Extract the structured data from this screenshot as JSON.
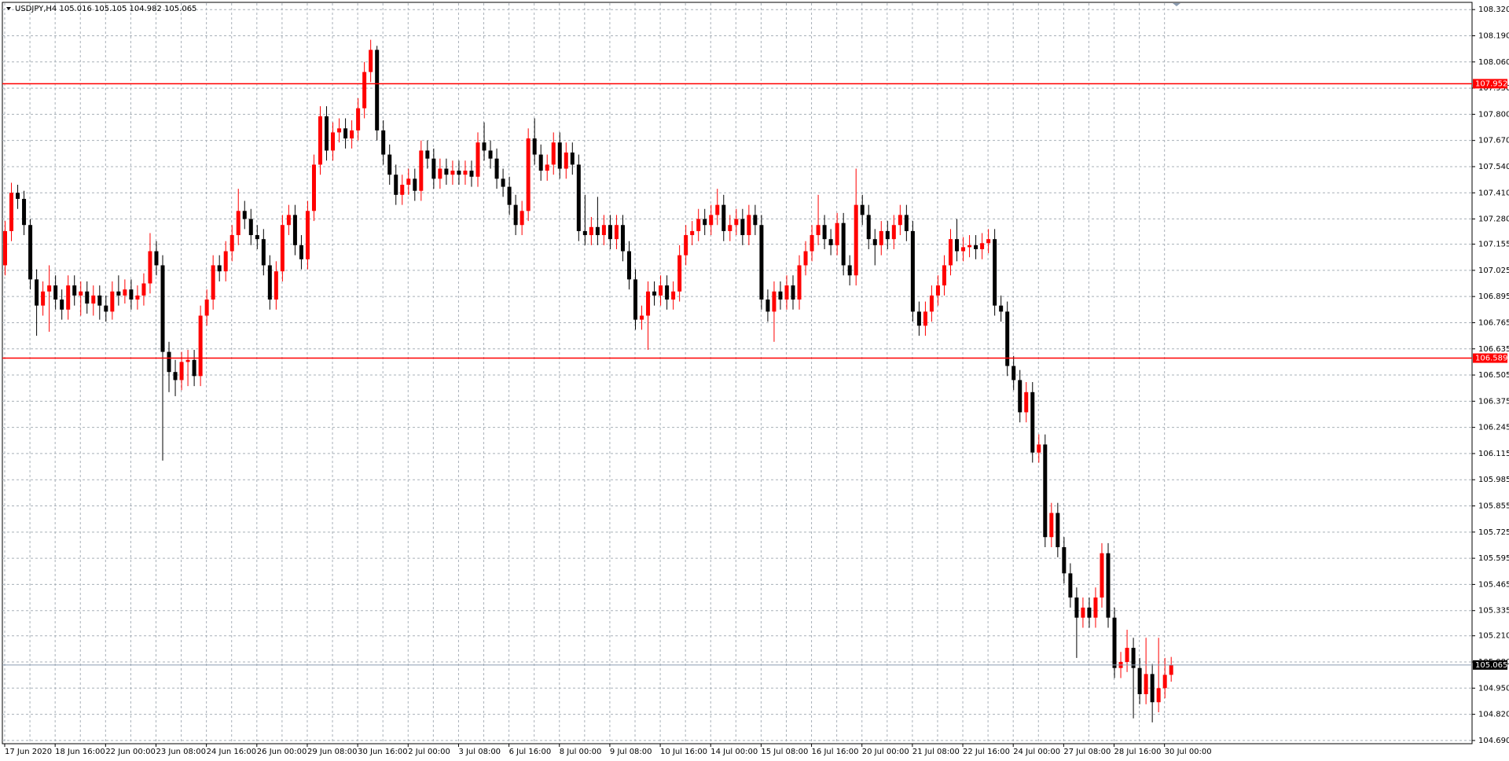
{
  "chart_data": {
    "type": "candlestick",
    "title": "USDJPY,H4  105.016 105.105 104.982 105.065",
    "up_color": "#ff0000",
    "down_color": "#000000",
    "grid": true,
    "categories": [
      "17 Jun 2020",
      null,
      null,
      null,
      null,
      null,
      null,
      null,
      "18 Jun 16:00",
      null,
      null,
      null,
      null,
      null,
      null,
      null,
      "22 Jun 00:00",
      null,
      null,
      null,
      null,
      null,
      null,
      null,
      "23 Jun 08:00",
      null,
      null,
      null,
      null,
      null,
      null,
      null,
      "24 Jun 16:00",
      null,
      null,
      null,
      null,
      null,
      null,
      null,
      "26 Jun 00:00",
      null,
      null,
      null,
      null,
      null,
      null,
      null,
      "29 Jun 08:00",
      null,
      null,
      null,
      null,
      null,
      null,
      null,
      "30 Jun 16:00",
      null,
      null,
      null,
      null,
      null,
      null,
      null,
      "2 Jul 00:00",
      null,
      null,
      null,
      null,
      null,
      null,
      null,
      "3 Jul 08:00",
      null,
      null,
      null,
      null,
      null,
      null,
      null,
      "6 Jul 16:00",
      null,
      null,
      null,
      null,
      null,
      null,
      null,
      "8 Jul 00:00",
      null,
      null,
      null,
      null,
      null,
      null,
      null,
      "9 Jul 08:00",
      null,
      null,
      null,
      null,
      null,
      null,
      null,
      "10 Jul 16:00",
      null,
      null,
      null,
      null,
      null,
      null,
      null,
      "14 Jul 00:00",
      null,
      null,
      null,
      null,
      null,
      null,
      null,
      "15 Jul 08:00",
      null,
      null,
      null,
      null,
      null,
      null,
      null,
      "16 Jul 16:00",
      null,
      null,
      null,
      null,
      null,
      null,
      null,
      "20 Jul 00:00",
      null,
      null,
      null,
      null,
      null,
      null,
      null,
      "21 Jul 08:00",
      null,
      null,
      null,
      null,
      null,
      null,
      null,
      "22 Jul 16:00",
      null,
      null,
      null,
      null,
      null,
      null,
      null,
      "24 Jul 00:00",
      null,
      null,
      null,
      null,
      null,
      null,
      null,
      "27 Jul 08:00",
      null,
      null,
      null,
      null,
      null,
      null,
      null,
      "28 Jul 16:00",
      null,
      null,
      null,
      null,
      null,
      null,
      null,
      "30 Jul 00:00",
      null
    ],
    "candles": [
      [
        107.05,
        107.27,
        107.0,
        107.22
      ],
      [
        107.22,
        107.46,
        107.17,
        107.41
      ],
      [
        107.41,
        107.45,
        107.33,
        107.38
      ],
      [
        107.38,
        107.42,
        107.2,
        107.25
      ],
      [
        107.25,
        107.28,
        106.93,
        106.98
      ],
      [
        106.98,
        107.03,
        106.7,
        106.85
      ],
      [
        106.85,
        106.97,
        106.8,
        106.92
      ],
      [
        106.92,
        107.05,
        106.72,
        106.95
      ],
      [
        106.95,
        107.0,
        106.83,
        106.88
      ],
      [
        106.88,
        106.93,
        106.78,
        106.83
      ],
      [
        106.83,
        107.0,
        106.78,
        106.95
      ],
      [
        106.95,
        107.0,
        106.85,
        106.9
      ],
      [
        106.9,
        106.97,
        106.8,
        106.92
      ],
      [
        106.92,
        106.97,
        106.81,
        106.86
      ],
      [
        106.86,
        106.95,
        106.8,
        106.9
      ],
      [
        106.9,
        106.95,
        106.78,
        106.85
      ],
      [
        106.85,
        106.9,
        106.77,
        106.82
      ],
      [
        106.82,
        106.97,
        106.78,
        106.92
      ],
      [
        106.92,
        107.0,
        106.85,
        106.9
      ],
      [
        106.9,
        106.98,
        106.86,
        106.93
      ],
      [
        106.93,
        106.98,
        106.83,
        106.88
      ],
      [
        106.88,
        106.95,
        106.83,
        106.9
      ],
      [
        106.9,
        107.01,
        106.85,
        106.96
      ],
      [
        106.96,
        107.21,
        106.91,
        107.12
      ],
      [
        107.12,
        107.17,
        107.0,
        107.05
      ],
      [
        107.05,
        107.1,
        106.08,
        106.62
      ],
      [
        106.62,
        106.67,
        106.42,
        106.52
      ],
      [
        106.52,
        106.58,
        106.4,
        106.48
      ],
      [
        106.48,
        106.62,
        106.43,
        106.57
      ],
      [
        106.57,
        106.63,
        106.45,
        106.58
      ],
      [
        106.58,
        106.63,
        106.45,
        106.5
      ],
      [
        106.5,
        106.85,
        106.45,
        106.8
      ],
      [
        106.8,
        106.93,
        106.75,
        106.88
      ],
      [
        106.88,
        107.1,
        106.83,
        107.05
      ],
      [
        107.05,
        107.1,
        106.97,
        107.02
      ],
      [
        107.02,
        107.17,
        106.97,
        107.12
      ],
      [
        107.12,
        107.25,
        107.07,
        107.2
      ],
      [
        107.2,
        107.43,
        107.15,
        107.32
      ],
      [
        107.32,
        107.37,
        107.23,
        107.28
      ],
      [
        107.28,
        107.33,
        107.15,
        107.2
      ],
      [
        107.2,
        107.25,
        107.13,
        107.18
      ],
      [
        107.18,
        107.23,
        107.0,
        107.05
      ],
      [
        107.05,
        107.1,
        106.83,
        106.88
      ],
      [
        106.88,
        107.07,
        106.83,
        107.02
      ],
      [
        107.02,
        107.3,
        106.97,
        107.25
      ],
      [
        107.25,
        107.35,
        107.2,
        107.3
      ],
      [
        107.3,
        107.35,
        107.1,
        107.15
      ],
      [
        107.15,
        107.2,
        107.03,
        107.08
      ],
      [
        107.08,
        107.37,
        107.03,
        107.32
      ],
      [
        107.32,
        107.6,
        107.27,
        107.55
      ],
      [
        107.55,
        107.84,
        107.5,
        107.79
      ],
      [
        107.79,
        107.84,
        107.57,
        107.62
      ],
      [
        107.62,
        107.76,
        107.57,
        107.71
      ],
      [
        107.71,
        107.78,
        107.66,
        107.73
      ],
      [
        107.73,
        107.78,
        107.63,
        107.68
      ],
      [
        107.68,
        107.77,
        107.63,
        107.72
      ],
      [
        107.72,
        107.88,
        107.67,
        107.83
      ],
      [
        107.83,
        108.06,
        107.78,
        108.01
      ],
      [
        108.01,
        108.17,
        107.96,
        108.12
      ],
      [
        108.12,
        108.14,
        107.67,
        107.72
      ],
      [
        107.72,
        107.77,
        107.55,
        107.6
      ],
      [
        107.6,
        107.65,
        107.45,
        107.5
      ],
      [
        107.5,
        107.55,
        107.35,
        107.4
      ],
      [
        107.4,
        107.5,
        107.35,
        107.45
      ],
      [
        107.45,
        107.53,
        107.4,
        107.48
      ],
      [
        107.48,
        107.53,
        107.37,
        107.42
      ],
      [
        107.42,
        107.67,
        107.37,
        107.62
      ],
      [
        107.62,
        107.67,
        107.53,
        107.58
      ],
      [
        107.58,
        107.63,
        107.43,
        107.48
      ],
      [
        107.48,
        107.58,
        107.43,
        107.53
      ],
      [
        107.53,
        107.58,
        107.45,
        107.5
      ],
      [
        107.5,
        107.57,
        107.45,
        107.52
      ],
      [
        107.52,
        107.57,
        107.45,
        107.5
      ],
      [
        107.5,
        107.57,
        107.45,
        107.52
      ],
      [
        107.52,
        107.57,
        107.44,
        107.49
      ],
      [
        107.49,
        107.71,
        107.44,
        107.66
      ],
      [
        107.66,
        107.76,
        107.57,
        107.62
      ],
      [
        107.62,
        107.67,
        107.53,
        107.58
      ],
      [
        107.58,
        107.63,
        107.43,
        107.48
      ],
      [
        107.48,
        107.53,
        107.39,
        107.44
      ],
      [
        107.44,
        107.49,
        107.3,
        107.35
      ],
      [
        107.35,
        107.4,
        107.2,
        107.25
      ],
      [
        107.25,
        107.37,
        107.2,
        107.32
      ],
      [
        107.32,
        107.73,
        107.27,
        107.68
      ],
      [
        107.68,
        107.78,
        107.55,
        107.6
      ],
      [
        107.6,
        107.65,
        107.47,
        107.52
      ],
      [
        107.52,
        107.6,
        107.47,
        107.55
      ],
      [
        107.55,
        107.71,
        107.5,
        107.66
      ],
      [
        107.66,
        107.71,
        107.48,
        107.53
      ],
      [
        107.53,
        107.66,
        107.48,
        107.61
      ],
      [
        107.61,
        107.66,
        107.5,
        107.55
      ],
      [
        107.55,
        107.6,
        107.17,
        107.22
      ],
      [
        107.22,
        107.4,
        107.15,
        107.2
      ],
      [
        107.2,
        107.29,
        107.15,
        107.24
      ],
      [
        107.24,
        107.39,
        107.15,
        107.2
      ],
      [
        107.2,
        107.3,
        107.15,
        107.25
      ],
      [
        107.25,
        107.3,
        107.13,
        107.18
      ],
      [
        107.18,
        107.3,
        107.13,
        107.25
      ],
      [
        107.25,
        107.3,
        107.07,
        107.12
      ],
      [
        107.12,
        107.17,
        106.93,
        106.98
      ],
      [
        106.98,
        107.03,
        106.73,
        106.78
      ],
      [
        106.78,
        106.85,
        106.73,
        106.8
      ],
      [
        106.8,
        106.97,
        106.63,
        106.92
      ],
      [
        106.92,
        106.97,
        106.85,
        106.9
      ],
      [
        106.9,
        107.0,
        106.85,
        106.95
      ],
      [
        106.95,
        107.0,
        106.83,
        106.88
      ],
      [
        106.88,
        106.97,
        106.83,
        106.92
      ],
      [
        106.92,
        107.15,
        106.87,
        107.1
      ],
      [
        107.1,
        107.25,
        107.05,
        107.2
      ],
      [
        107.2,
        107.27,
        107.15,
        107.22
      ],
      [
        107.22,
        107.33,
        107.17,
        107.28
      ],
      [
        107.28,
        107.33,
        107.2,
        107.25
      ],
      [
        107.25,
        107.35,
        107.2,
        107.3
      ],
      [
        107.3,
        107.43,
        107.25,
        107.35
      ],
      [
        107.35,
        107.4,
        107.17,
        107.22
      ],
      [
        107.22,
        107.3,
        107.17,
        107.25
      ],
      [
        107.25,
        107.33,
        107.2,
        107.28
      ],
      [
        107.28,
        107.33,
        107.15,
        107.2
      ],
      [
        107.2,
        107.35,
        107.15,
        107.3
      ],
      [
        107.3,
        107.35,
        107.2,
        107.25
      ],
      [
        107.25,
        107.3,
        106.83,
        106.88
      ],
      [
        106.88,
        106.93,
        106.77,
        106.82
      ],
      [
        106.82,
        106.97,
        106.67,
        106.92
      ],
      [
        106.92,
        106.97,
        106.83,
        106.88
      ],
      [
        106.88,
        107.0,
        106.83,
        106.95
      ],
      [
        106.95,
        107.0,
        106.83,
        106.88
      ],
      [
        106.88,
        107.1,
        106.83,
        107.05
      ],
      [
        107.05,
        107.17,
        107.0,
        107.12
      ],
      [
        107.12,
        107.25,
        107.07,
        107.2
      ],
      [
        107.2,
        107.4,
        107.15,
        107.25
      ],
      [
        107.25,
        107.3,
        107.13,
        107.18
      ],
      [
        107.18,
        107.23,
        107.1,
        107.15
      ],
      [
        107.15,
        107.31,
        107.1,
        107.26
      ],
      [
        107.26,
        107.31,
        107.0,
        107.05
      ],
      [
        107.05,
        107.1,
        106.95,
        107.0
      ],
      [
        107.0,
        107.53,
        106.95,
        107.35
      ],
      [
        107.35,
        107.4,
        107.25,
        107.3
      ],
      [
        107.3,
        107.35,
        107.13,
        107.18
      ],
      [
        107.18,
        107.23,
        107.05,
        107.15
      ],
      [
        107.15,
        107.27,
        107.1,
        107.22
      ],
      [
        107.22,
        107.27,
        107.13,
        107.18
      ],
      [
        107.18,
        107.3,
        107.13,
        107.25
      ],
      [
        107.25,
        107.35,
        107.2,
        107.3
      ],
      [
        107.3,
        107.35,
        107.17,
        107.22
      ],
      [
        107.22,
        107.27,
        106.77,
        106.82
      ],
      [
        106.82,
        106.87,
        106.7,
        106.75
      ],
      [
        106.75,
        106.87,
        106.7,
        106.82
      ],
      [
        106.82,
        106.95,
        106.77,
        106.9
      ],
      [
        106.9,
        107.0,
        106.85,
        106.95
      ],
      [
        106.95,
        107.1,
        106.9,
        107.05
      ],
      [
        107.05,
        107.23,
        107.0,
        107.18
      ],
      [
        107.18,
        107.28,
        107.07,
        107.12
      ],
      [
        107.12,
        107.19,
        107.07,
        107.14
      ],
      [
        107.14,
        107.2,
        107.09,
        107.15
      ],
      [
        107.15,
        107.2,
        107.08,
        107.13
      ],
      [
        107.13,
        107.21,
        107.08,
        107.16
      ],
      [
        107.16,
        107.23,
        107.11,
        107.18
      ],
      [
        107.18,
        107.23,
        106.8,
        106.85
      ],
      [
        106.85,
        106.9,
        106.77,
        106.82
      ],
      [
        106.82,
        106.87,
        106.5,
        106.55
      ],
      [
        106.55,
        106.6,
        106.43,
        106.48
      ],
      [
        106.48,
        106.53,
        106.27,
        106.32
      ],
      [
        106.32,
        106.47,
        106.27,
        106.42
      ],
      [
        106.42,
        106.47,
        106.07,
        106.12
      ],
      [
        106.12,
        106.21,
        106.07,
        106.16
      ],
      [
        106.16,
        106.21,
        105.65,
        105.7
      ],
      [
        105.7,
        105.87,
        105.65,
        105.82
      ],
      [
        105.82,
        105.87,
        105.6,
        105.65
      ],
      [
        105.65,
        105.7,
        105.47,
        105.52
      ],
      [
        105.52,
        105.57,
        105.35,
        105.4
      ],
      [
        105.4,
        105.45,
        105.1,
        105.3
      ],
      [
        105.3,
        105.4,
        105.25,
        105.35
      ],
      [
        105.35,
        105.4,
        105.25,
        105.3
      ],
      [
        105.3,
        105.45,
        105.25,
        105.4
      ],
      [
        105.4,
        105.67,
        105.35,
        105.62
      ],
      [
        105.62,
        105.67,
        105.25,
        105.3
      ],
      [
        105.3,
        105.35,
        105.0,
        105.05
      ],
      [
        105.05,
        105.13,
        105.0,
        105.08
      ],
      [
        105.08,
        105.24,
        105.03,
        105.15
      ],
      [
        105.15,
        105.2,
        104.8,
        105.05
      ],
      [
        105.05,
        105.1,
        104.87,
        104.92
      ],
      [
        104.92,
        105.2,
        104.87,
        105.02
      ],
      [
        105.02,
        105.07,
        104.78,
        104.88
      ],
      [
        104.88,
        105.2,
        104.83,
        104.95
      ],
      [
        104.95,
        105.1,
        104.9,
        105.016
      ],
      [
        105.016,
        105.105,
        104.982,
        105.065
      ]
    ],
    "ylim": [
      104.674,
      108.352
    ],
    "yticks": [
      {
        "value": 108.32,
        "label": "108.320"
      },
      {
        "value": 108.19,
        "label": "108.190"
      },
      {
        "value": 108.06,
        "label": "108.060"
      },
      {
        "value": 107.93,
        "label": "107.930"
      },
      {
        "value": 107.8,
        "label": "107.800"
      },
      {
        "value": 107.67,
        "label": "107.670"
      },
      {
        "value": 107.54,
        "label": "107.540"
      },
      {
        "value": 107.41,
        "label": "107.410"
      },
      {
        "value": 107.28,
        "label": "107.280"
      },
      107.155,
      107.025,
      106.895,
      106.765,
      106.635,
      106.505,
      106.375,
      106.245,
      106.115,
      105.985,
      105.855,
      105.725,
      105.595,
      105.465,
      105.335,
      {
        "value": 105.21,
        "label": "105.210"
      },
      {
        "value": 105.08,
        "label": "105.080"
      },
      {
        "value": 104.95,
        "label": "104.950"
      },
      {
        "value": 104.82,
        "label": "104.820"
      },
      {
        "value": 104.69,
        "label": "104.690"
      }
    ],
    "hlines": [
      {
        "value": 107.952,
        "color": "#ff0000"
      },
      {
        "value": 106.589,
        "color": "#ff0000"
      },
      {
        "value": 105.065,
        "color": "#8a9bb0",
        "label_color": "#000000"
      }
    ]
  }
}
